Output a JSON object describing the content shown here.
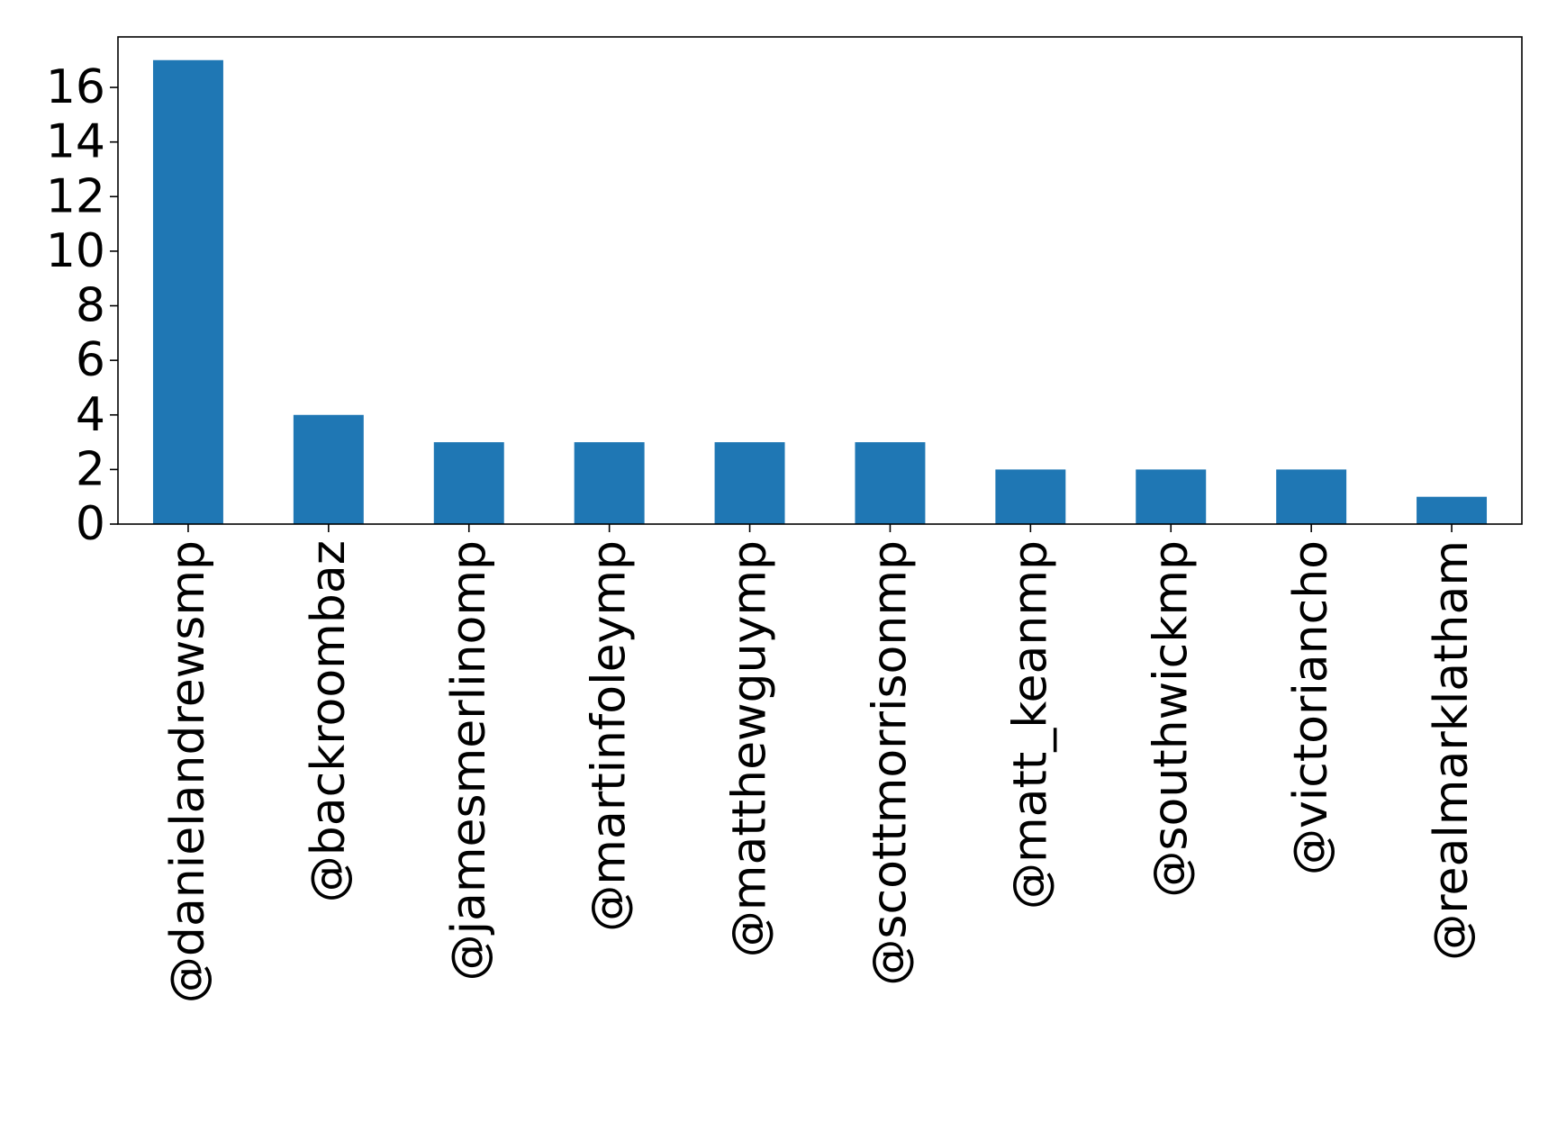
{
  "chart_data": {
    "type": "bar",
    "categories": [
      "@danielandrewsmp",
      "@backroombaz",
      "@jamesmerlinomp",
      "@martinfoleymp",
      "@matthewguymp",
      "@scottmorrisonmp",
      "@matt_keanmp",
      "@southwickmp",
      "@victoriancho",
      "@realmarklatham"
    ],
    "values": [
      17,
      4,
      3,
      3,
      3,
      3,
      2,
      2,
      2,
      1
    ],
    "yticks": [
      0,
      2,
      4,
      6,
      8,
      10,
      12,
      14,
      16
    ],
    "ylim": [
      0,
      17.85
    ],
    "title": "",
    "xlabel": "",
    "ylabel": "",
    "grid": false,
    "bar_color": "#1f77b4"
  }
}
